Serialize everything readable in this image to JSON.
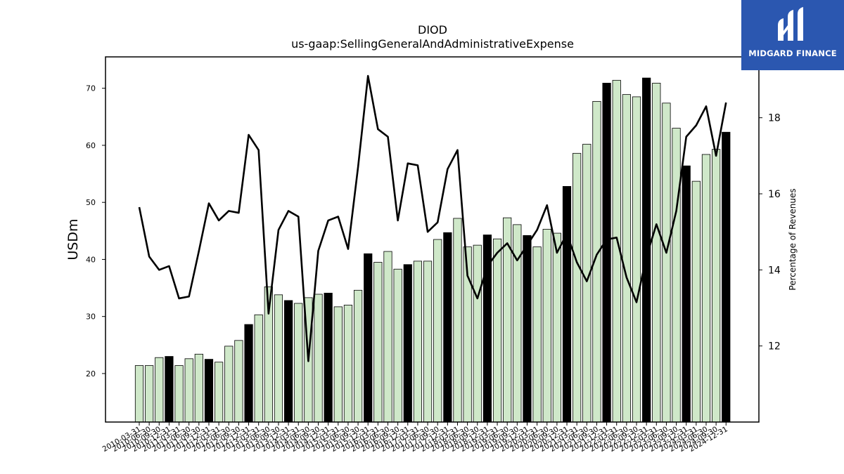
{
  "brand": {
    "name": "MIDGARD FINANCE"
  },
  "chart_data": {
    "type": "bar",
    "title": "DIOD",
    "subtitle": "us-gaap:SellingGeneralAndAdministrativeExpense",
    "ylabel": "USDm",
    "y2label": "Percentage of Revenues",
    "ylim": [
      11.5,
      75.5
    ],
    "y2lim": [
      10.0,
      19.6
    ],
    "yticks": [
      20,
      30,
      40,
      50,
      60,
      70
    ],
    "y2ticks": [
      12,
      14,
      16,
      18
    ],
    "bar_colors": {
      "default": "#cfe8c9",
      "highlight": "#000000"
    },
    "line_color": "#000000",
    "categories": [
      "2010-03-31",
      "2010-06-30",
      "2010-09-30",
      "2010-12-31",
      "2011-03-31",
      "2011-06-30",
      "2011-09-30",
      "2011-12-31",
      "2012-03-31",
      "2012-06-30",
      "2012-09-30",
      "2012-12-31",
      "2013-03-31",
      "2013-06-30",
      "2013-09-30",
      "2013-12-31",
      "2014-03-31",
      "2014-06-30",
      "2014-09-30",
      "2014-12-31",
      "2015-03-31",
      "2015-06-30",
      "2015-09-30",
      "2015-12-31",
      "2016-03-31",
      "2016-06-30",
      "2016-09-30",
      "2016-12-31",
      "2017-03-31",
      "2017-06-30",
      "2017-09-30",
      "2017-12-31",
      "2018-03-31",
      "2018-06-30",
      "2018-09-30",
      "2018-12-31",
      "2019-03-31",
      "2019-06-30",
      "2019-09-30",
      "2019-12-31",
      "2020-03-31",
      "2020-06-30",
      "2020-09-30",
      "2020-12-31",
      "2021-03-31",
      "2021-06-30",
      "2021-09-30",
      "2021-12-31",
      "2022-03-31",
      "2022-06-30",
      "2022-09-30",
      "2022-12-31",
      "2023-03-31",
      "2023-06-30",
      "2023-09-30",
      "2023-12-31",
      "2024-03-31",
      "2024-06-30",
      "2024-09-30",
      "2024-12-31"
    ],
    "series": [
      {
        "values": [
          21.4,
          21.4,
          22.8,
          23.0,
          21.4,
          22.6,
          23.4,
          22.5,
          22.0,
          24.8,
          25.8,
          28.6,
          30.3,
          35.2,
          33.8,
          32.8,
          32.3,
          33.3,
          33.9,
          34.1,
          31.7,
          32.0,
          34.6,
          41.0,
          39.5,
          41.4,
          38.3,
          39.1,
          39.7,
          39.7,
          43.5,
          44.7,
          47.2,
          42.2,
          42.5,
          44.3,
          43.6,
          47.3,
          46.1,
          44.2,
          42.2,
          45.3,
          44.6,
          52.8,
          58.6,
          60.2,
          67.7,
          70.9,
          71.4,
          68.9,
          68.5,
          71.8,
          70.9,
          67.4,
          63.0,
          56.4,
          53.7,
          58.4,
          59.3,
          62.3
        ],
        "highlight": [
          0,
          0,
          0,
          1,
          0,
          0,
          0,
          1,
          0,
          0,
          0,
          1,
          0,
          0,
          0,
          1,
          0,
          0,
          0,
          1,
          0,
          0,
          0,
          1,
          0,
          0,
          0,
          1,
          0,
          0,
          0,
          1,
          0,
          0,
          0,
          1,
          0,
          0,
          0,
          1,
          0,
          0,
          0,
          1,
          0,
          0,
          0,
          1,
          0,
          0,
          0,
          1,
          0,
          0,
          0,
          1,
          0,
          0,
          0,
          1
        ]
      },
      {
        "values": [
          15.65,
          14.35,
          14.0,
          14.1,
          13.25,
          13.3,
          14.5,
          15.75,
          15.3,
          15.55,
          15.5,
          17.55,
          17.15,
          12.85,
          15.05,
          15.55,
          15.4,
          11.6,
          14.5,
          15.3,
          15.4,
          14.55,
          16.7,
          19.1,
          17.7,
          17.5,
          15.3,
          16.8,
          16.75,
          15.0,
          15.25,
          16.65,
          17.15,
          13.85,
          13.25,
          14.1,
          14.45,
          14.7,
          14.25,
          14.65,
          15.05,
          15.7,
          14.45,
          14.95,
          14.2,
          13.7,
          14.4,
          14.8,
          14.85,
          13.8,
          13.15,
          14.35,
          15.2,
          14.45,
          15.55,
          17.5,
          17.8,
          18.3,
          17.0,
          18.4
        ]
      }
    ]
  }
}
